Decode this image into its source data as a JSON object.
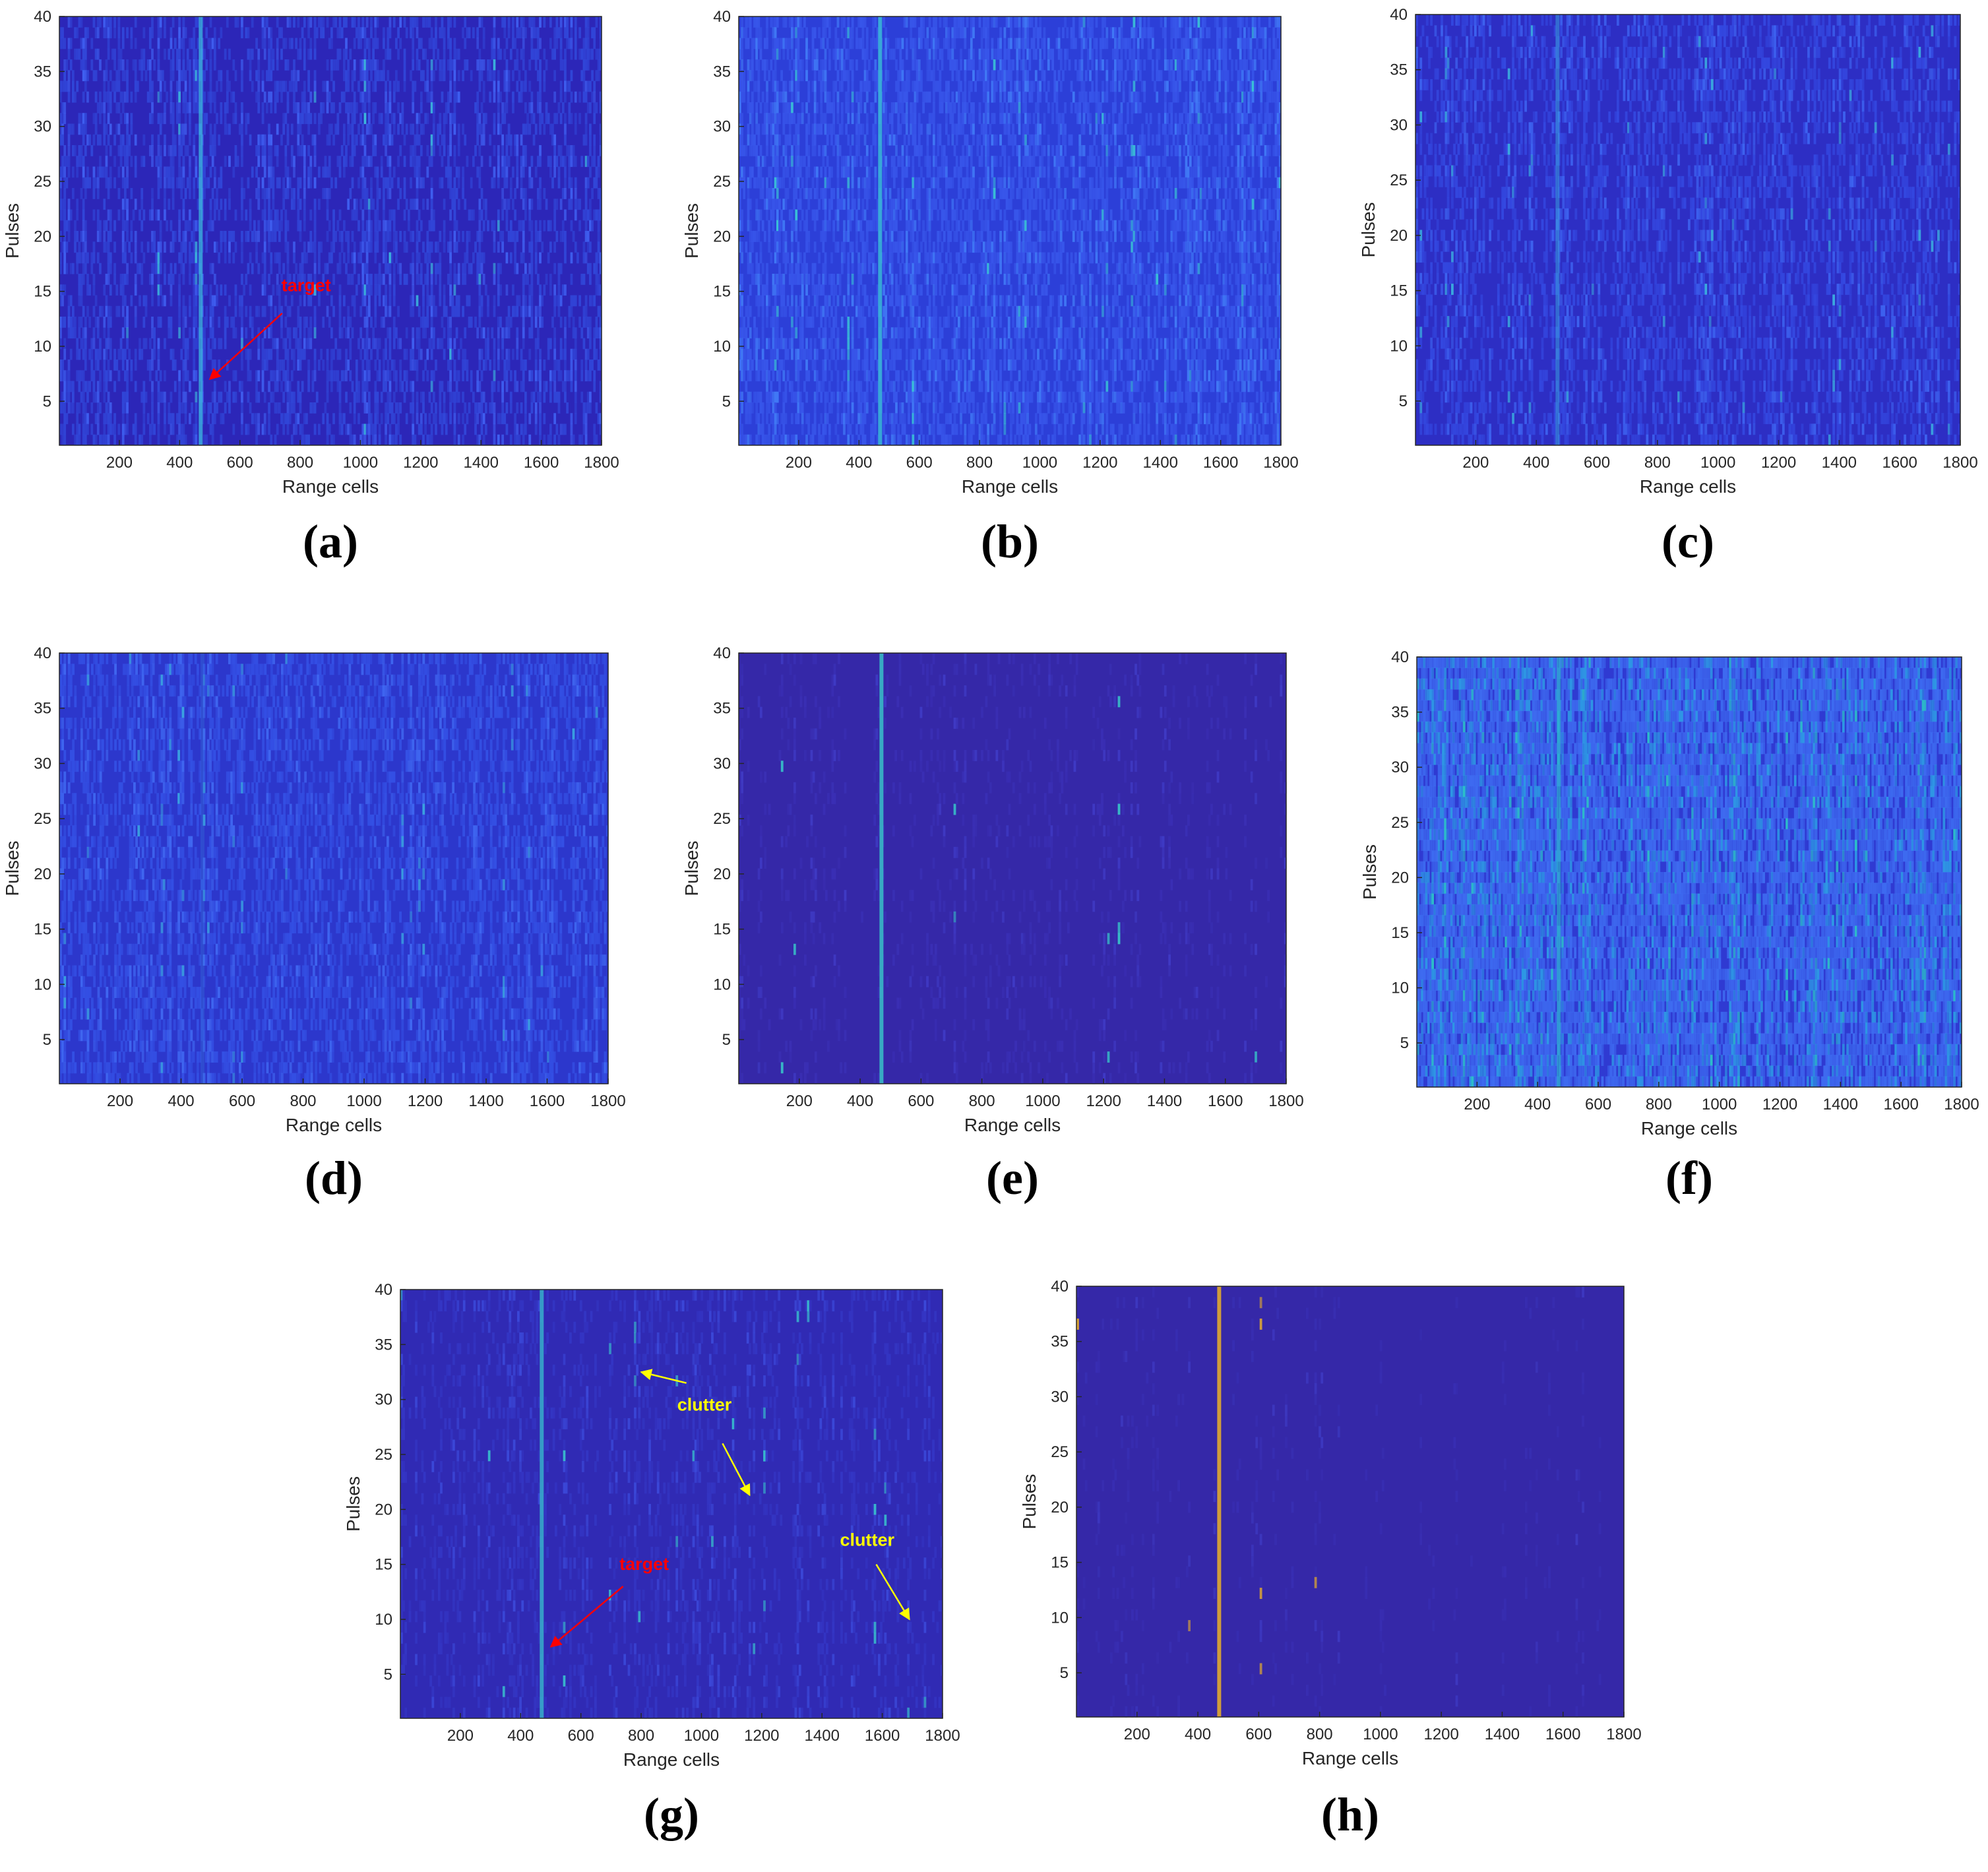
{
  "colors": {
    "text": "#262626",
    "axis": "#262626",
    "target_annotation": "#ff0000",
    "clutter_annotation": "#ffff00"
  },
  "chart_data": [
    {
      "type": "heatmap",
      "caption": "(a)",
      "xlabel": "Range cells",
      "ylabel": "Pulses",
      "xlim": [
        1,
        1800
      ],
      "ylim": [
        1,
        40
      ],
      "xticks": [
        200,
        400,
        600,
        800,
        1000,
        1200,
        1400,
        1600,
        1800
      ],
      "yticks": [
        5,
        10,
        15,
        20,
        25,
        30,
        35,
        40
      ],
      "target_range_cell": 470,
      "palette": [
        "#2c26b8",
        "#3146d8",
        "#3f5ff0",
        "#3bb5dc"
      ],
      "noise_level": 0.45,
      "target_level": 0.75,
      "annotations": [
        {
          "text": "target",
          "color": "#ff0000",
          "text_at": [
            820,
            15
          ],
          "arrow_from": [
            740,
            13
          ],
          "arrow_to": [
            500,
            7
          ]
        }
      ]
    },
    {
      "type": "heatmap",
      "caption": "(b)",
      "xlabel": "Range cells",
      "ylabel": "Pulses",
      "xlim": [
        1,
        1800
      ],
      "ylim": [
        1,
        40
      ],
      "xticks": [
        200,
        400,
        600,
        800,
        1000,
        1200,
        1400,
        1600,
        1800
      ],
      "yticks": [
        5,
        10,
        15,
        20,
        25,
        30,
        35,
        40
      ],
      "target_range_cell": 470,
      "palette": [
        "#2c3fd8",
        "#3856ea",
        "#4078f5",
        "#39c0d6"
      ],
      "noise_level": 0.5,
      "target_level": 0.8,
      "annotations": []
    },
    {
      "type": "heatmap",
      "caption": "(c)",
      "xlabel": "Range cells",
      "ylabel": "Pulses",
      "xlim": [
        1,
        1800
      ],
      "ylim": [
        1,
        40
      ],
      "xticks": [
        200,
        400,
        600,
        800,
        1000,
        1200,
        1400,
        1600,
        1800
      ],
      "yticks": [
        5,
        10,
        15,
        20,
        25,
        30,
        35,
        40
      ],
      "target_range_cell": 470,
      "palette": [
        "#2d2ec4",
        "#3448e0",
        "#3d62ef",
        "#3aa9de"
      ],
      "noise_level": 0.42,
      "target_level": 0.5,
      "annotations": []
    },
    {
      "type": "heatmap",
      "caption": "(d)",
      "xlabel": "Range cells",
      "ylabel": "Pulses",
      "xlim": [
        1,
        1800
      ],
      "ylim": [
        1,
        40
      ],
      "xticks": [
        200,
        400,
        600,
        800,
        1000,
        1200,
        1400,
        1600,
        1800
      ],
      "yticks": [
        5,
        10,
        15,
        20,
        25,
        30,
        35,
        40
      ],
      "target_range_cell": 470,
      "palette": [
        "#2c37cc",
        "#3450e4",
        "#3f66f0",
        "#3aa0e0"
      ],
      "noise_level": 0.45,
      "target_level": 0.2,
      "annotations": []
    },
    {
      "type": "heatmap",
      "caption": "(e)",
      "xlabel": "Range cells",
      "ylabel": "Pulses",
      "xlim": [
        1,
        1800
      ],
      "ylim": [
        1,
        40
      ],
      "xticks": [
        200,
        400,
        600,
        800,
        1000,
        1200,
        1400,
        1600,
        1800
      ],
      "yticks": [
        5,
        10,
        15,
        20,
        25,
        30,
        35,
        40
      ],
      "target_range_cell": 470,
      "palette": [
        "#3528a8",
        "#3a2fb4",
        "#3f3ac4",
        "#38c0c8"
      ],
      "noise_level": 0.2,
      "target_level": 0.85,
      "annotations": []
    },
    {
      "type": "heatmap",
      "caption": "(f)",
      "xlabel": "Range cells",
      "ylabel": "Pulses",
      "xlim": [
        1,
        1800
      ],
      "ylim": [
        1,
        40
      ],
      "xticks": [
        200,
        400,
        600,
        800,
        1000,
        1200,
        1400,
        1600,
        1800
      ],
      "yticks": [
        5,
        10,
        15,
        20,
        25,
        30,
        35,
        40
      ],
      "target_range_cell": 470,
      "palette": [
        "#2f3ad2",
        "#3e6bf0",
        "#2e98e4",
        "#2cc0c8"
      ],
      "noise_level": 0.7,
      "target_level": 0.6,
      "annotations": []
    },
    {
      "type": "heatmap",
      "caption": "(g)",
      "xlabel": "Range cells",
      "ylabel": "Pulses",
      "xlim": [
        1,
        1800
      ],
      "ylim": [
        1,
        40
      ],
      "xticks": [
        200,
        400,
        600,
        800,
        1000,
        1200,
        1400,
        1600,
        1800
      ],
      "yticks": [
        5,
        10,
        15,
        20,
        25,
        30,
        35,
        40
      ],
      "target_range_cell": 470,
      "palette": [
        "#302ab4",
        "#3436c4",
        "#3b48d8",
        "#38b8cc"
      ],
      "noise_level": 0.3,
      "target_level": 0.8,
      "annotations": [
        {
          "text": "target",
          "color": "#ff0000",
          "text_at": [
            810,
            14.5
          ],
          "arrow_from": [
            740,
            13
          ],
          "arrow_to": [
            500,
            7.5
          ]
        },
        {
          "text": "clutter",
          "color": "#ffff00",
          "text_at": [
            1010,
            29
          ],
          "arrow_from": [
            950,
            31.5
          ],
          "arrow_to": [
            800,
            32.5
          ]
        },
        {
          "text": "clutter",
          "color": "#ffff00",
          "text_at": [
            1010,
            29
          ],
          "arrow_from": [
            1070,
            26
          ],
          "arrow_to": [
            1160,
            21.3
          ]
        },
        {
          "text": "clutter",
          "color": "#ffff00",
          "text_at": [
            1550,
            16.7
          ],
          "arrow_from": [
            1580,
            15
          ],
          "arrow_to": [
            1690,
            10
          ]
        }
      ]
    },
    {
      "type": "heatmap",
      "caption": "(h)",
      "xlabel": "Range cells",
      "ylabel": "Pulses",
      "xlim": [
        1,
        1800
      ],
      "ylim": [
        1,
        40
      ],
      "xticks": [
        200,
        400,
        600,
        800,
        1000,
        1200,
        1400,
        1600,
        1800
      ],
      "yticks": [
        5,
        10,
        15,
        20,
        25,
        30,
        35,
        40
      ],
      "target_range_cell": 470,
      "palette": [
        "#3528a8",
        "#382eb2",
        "#3d38c0",
        "#e0a830"
      ],
      "noise_level": 0.15,
      "target_level": 0.9,
      "annotations": []
    }
  ]
}
